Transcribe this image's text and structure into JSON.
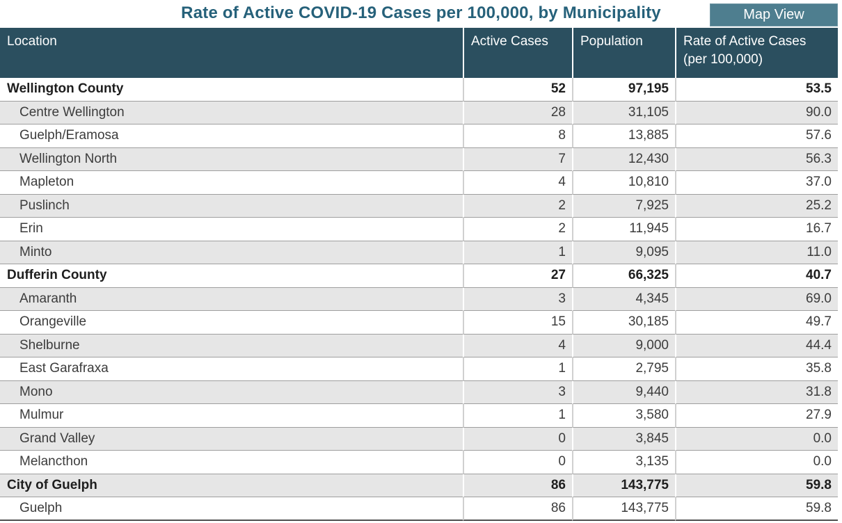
{
  "title": "Rate of Active COVID-19 Cases per 100,000, by Municipality",
  "toolbar": {
    "map_view_label": "Map View"
  },
  "colors": {
    "header_bg": "#2B4F5F",
    "title_text": "#26617A",
    "button_bg": "#4E7E8F",
    "button_text": "#FFFFFF",
    "stripe_bg": "#E6E6E6",
    "row_separator": "#9E9E9E",
    "bottom_border": "#4F4F4F",
    "body_text": "#3C3C3C",
    "group_text": "#1E1E1E"
  },
  "chart_data": {
    "type": "table",
    "title": "Rate of Active COVID-19 Cases per 100,000, by Municipality",
    "columns": [
      "Location",
      "Active Cases",
      "Population",
      "Rate of Active Cases (per 100,000)"
    ],
    "rows": [
      {
        "location": "Wellington County",
        "active_cases": "52",
        "population": "97,195",
        "rate": "53.5",
        "level": "group"
      },
      {
        "location": "Centre Wellington",
        "active_cases": "28",
        "population": "31,105",
        "rate": "90.0",
        "level": "sub"
      },
      {
        "location": "Guelph/Eramosa",
        "active_cases": "8",
        "population": "13,885",
        "rate": "57.6",
        "level": "sub"
      },
      {
        "location": "Wellington North",
        "active_cases": "7",
        "population": "12,430",
        "rate": "56.3",
        "level": "sub"
      },
      {
        "location": "Mapleton",
        "active_cases": "4",
        "population": "10,810",
        "rate": "37.0",
        "level": "sub"
      },
      {
        "location": "Puslinch",
        "active_cases": "2",
        "population": "7,925",
        "rate": "25.2",
        "level": "sub"
      },
      {
        "location": "Erin",
        "active_cases": "2",
        "population": "11,945",
        "rate": "16.7",
        "level": "sub"
      },
      {
        "location": "Minto",
        "active_cases": "1",
        "population": "9,095",
        "rate": "11.0",
        "level": "sub"
      },
      {
        "location": "Dufferin County",
        "active_cases": "27",
        "population": "66,325",
        "rate": "40.7",
        "level": "group"
      },
      {
        "location": "Amaranth",
        "active_cases": "3",
        "population": "4,345",
        "rate": "69.0",
        "level": "sub"
      },
      {
        "location": "Orangeville",
        "active_cases": "15",
        "population": "30,185",
        "rate": "49.7",
        "level": "sub"
      },
      {
        "location": "Shelburne",
        "active_cases": "4",
        "population": "9,000",
        "rate": "44.4",
        "level": "sub"
      },
      {
        "location": "East Garafraxa",
        "active_cases": "1",
        "population": "2,795",
        "rate": "35.8",
        "level": "sub"
      },
      {
        "location": "Mono",
        "active_cases": "3",
        "population": "9,440",
        "rate": "31.8",
        "level": "sub"
      },
      {
        "location": "Mulmur",
        "active_cases": "1",
        "population": "3,580",
        "rate": "27.9",
        "level": "sub"
      },
      {
        "location": "Grand Valley",
        "active_cases": "0",
        "population": "3,845",
        "rate": "0.0",
        "level": "sub"
      },
      {
        "location": "Melancthon",
        "active_cases": "0",
        "population": "3,135",
        "rate": "0.0",
        "level": "sub"
      },
      {
        "location": "City of Guelph",
        "active_cases": "86",
        "population": "143,775",
        "rate": "59.8",
        "level": "group"
      },
      {
        "location": "Guelph",
        "active_cases": "86",
        "population": "143,775",
        "rate": "59.8",
        "level": "sub"
      }
    ]
  }
}
